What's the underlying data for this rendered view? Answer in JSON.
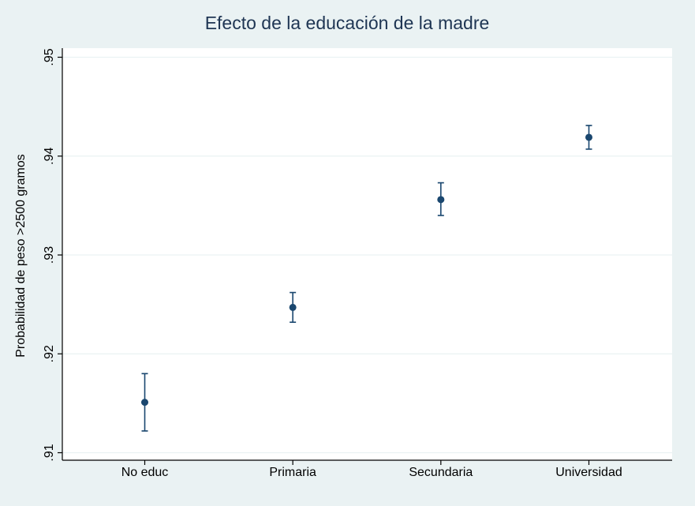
{
  "chart_data": {
    "type": "scatter",
    "title": "Efecto de la educación de la madre",
    "xlabel": "",
    "ylabel": "Probabilidad de peso >2500 gramos",
    "categories": [
      "No educ",
      "Primaria",
      "Secundaria",
      "Universidad"
    ],
    "series": [
      {
        "estimate": [
          0.9151,
          0.9247,
          0.9356,
          0.9419
        ],
        "ci_low": [
          0.9122,
          0.9232,
          0.934,
          0.9407
        ],
        "ci_high": [
          0.918,
          0.9262,
          0.9373,
          0.9431
        ]
      }
    ],
    "yticks": [
      0.91,
      0.92,
      0.93,
      0.94,
      0.95
    ],
    "ytick_labels": [
      ".91",
      ".92",
      ".93",
      ".94",
      ".95"
    ],
    "ylim": [
      0.91,
      0.95
    ],
    "grid": true,
    "legend": "none",
    "colors": {
      "marker": "#1a476f",
      "title": "#1e3553",
      "background": "#eaf2f3",
      "plot_area": "#ffffff"
    }
  }
}
